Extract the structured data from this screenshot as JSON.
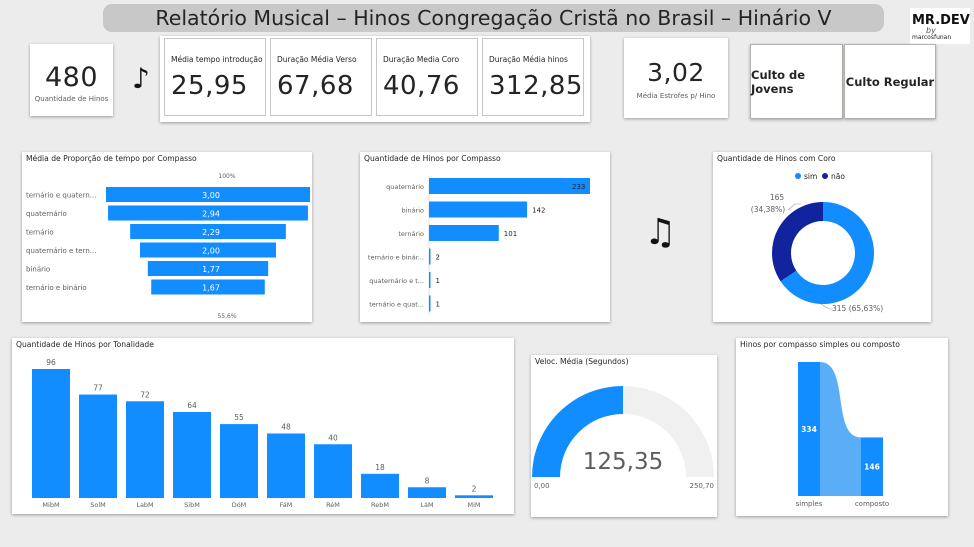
{
  "header": {
    "title": "Relatório Musical – Hinos Congregação Cristã no Brasil – Hinário V"
  },
  "logo": {
    "brand": "MR.DEV",
    "script": "by",
    "handle": "marcosfunan"
  },
  "kpis": {
    "total": {
      "value": "480",
      "label": "Quantidade de Hinos"
    },
    "intro": {
      "label": "Média tempo introdução",
      "value": "25,95"
    },
    "verse": {
      "label": "Duração Média Verso",
      "value": "67,68"
    },
    "chorus": {
      "label": "Duração Media Coro",
      "value": "40,76"
    },
    "hymn": {
      "label": "Duração Média hinos",
      "value": "312,85"
    },
    "stanzas": {
      "value": "3,02",
      "label": "Média Estrofes p/ Hino"
    }
  },
  "buttons": {
    "youth": "Culto de Jovens",
    "regular": "Culto Regular"
  },
  "icons": {
    "single_note": "♪",
    "double_note": "♫"
  },
  "charts": {
    "funnel": {
      "title": "Média de Proporção de tempo por Compasso",
      "top_pct": "100%",
      "bottom_pct": "55,6%",
      "color": "#118dff"
    },
    "compasso": {
      "title": "Quantidade de Hinos por Compasso",
      "color": "#118dff"
    },
    "donut": {
      "title": "Quantidade de Hinos com Coro",
      "legend_sim": "sim",
      "legend_nao": "não",
      "label_nao_1": "165",
      "label_nao_2": "(34,38%)",
      "label_sim": "315 (65,63%)",
      "color_sim": "#118dff",
      "color_nao": "#12239e"
    },
    "tonalidade": {
      "title": "Quantidade de Hinos por Tonalidade",
      "color": "#118dff"
    },
    "gauge": {
      "title": "Veloc. Média (Segundos)",
      "value": "125,35",
      "min": "0,00",
      "max": "250,70",
      "color": "#118dff",
      "track": "#f0f0f0"
    },
    "ribbon": {
      "title": "Hinos por compasso simples ou composto",
      "color": "#118dff",
      "ribbon_color": "#5aaef8"
    }
  },
  "chart_data": [
    {
      "type": "bar",
      "title": "Média de Proporção de tempo por Compasso",
      "categories": [
        "ternário e quaternário",
        "quaternário",
        "ternário",
        "quaternário e ternário",
        "binário",
        "ternário e binário"
      ],
      "category_labels": [
        "ternário e quatern...",
        "quaternário",
        "ternário",
        "quaternário e tern...",
        "binário",
        "ternário e binário"
      ],
      "values": [
        3.0,
        2.94,
        2.29,
        2.0,
        1.77,
        1.67
      ],
      "value_labels": [
        "3,00",
        "2,94",
        "2,29",
        "2,00",
        "1,77",
        "1,67"
      ],
      "layout": "funnel"
    },
    {
      "type": "bar",
      "title": "Quantidade de Hinos por Compasso",
      "categories": [
        "quaternário",
        "binário",
        "ternário",
        "ternário e binário",
        "quaternário e ternário",
        "ternário e quaternário"
      ],
      "category_labels": [
        "quaternário",
        "binário",
        "ternário",
        "ternário e binár...",
        "quaternário e t...",
        "ternário e quat..."
      ],
      "values": [
        233,
        142,
        101,
        2,
        1,
        1
      ],
      "orientation": "horizontal"
    },
    {
      "type": "pie",
      "title": "Quantidade de Hinos com Coro",
      "categories": [
        "sim",
        "não"
      ],
      "values": [
        315,
        165
      ],
      "percent": [
        65.63,
        34.38
      ],
      "donut": true
    },
    {
      "type": "bar",
      "title": "Quantidade de Hinos por Tonalidade",
      "categories": [
        "MibM",
        "SolM",
        "LabM",
        "SibM",
        "DóM",
        "FáM",
        "RéM",
        "RebM",
        "LáM",
        "MiM"
      ],
      "values": [
        96,
        77,
        72,
        64,
        55,
        48,
        40,
        18,
        8,
        2
      ]
    },
    {
      "type": "gauge",
      "title": "Veloc. Média (Segundos)",
      "value": 125.35,
      "min": 0.0,
      "max": 250.7
    },
    {
      "type": "bar",
      "title": "Hinos por compasso simples ou composto",
      "categories": [
        "simples",
        "composto"
      ],
      "values": [
        334,
        146
      ],
      "layout": "ribbon"
    }
  ]
}
